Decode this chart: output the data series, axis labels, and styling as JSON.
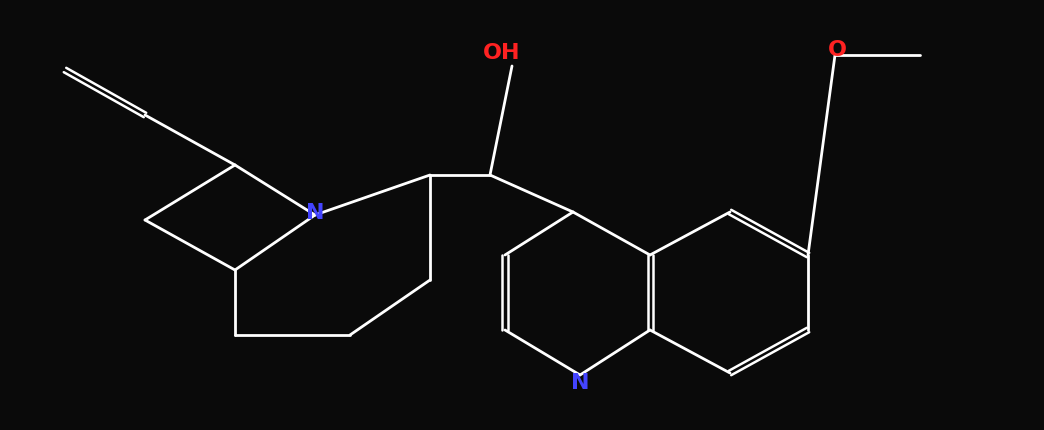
{
  "background_color": "#0a0a0a",
  "bond_color": "#ffffff",
  "N_color": "#4444ff",
  "O_color": "#ff2222",
  "label_OH": "OH",
  "label_O": "O",
  "label_N_left": "N",
  "label_N_right": "N",
  "figsize": [
    10.44,
    4.3
  ],
  "dpi": 100
}
